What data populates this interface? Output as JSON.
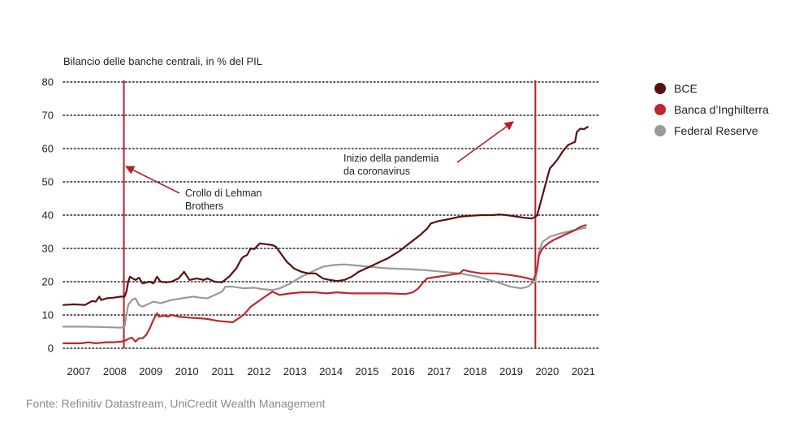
{
  "chart_data": {
    "type": "line",
    "title": "Bilancio delle banche centrali, in % del PIL",
    "xlabel": "",
    "ylabel": "Bilancio delle banche centrali, in % del PIL",
    "xlim": [
      2007.0,
      2021.85
    ],
    "ylim": [
      0,
      80
    ],
    "y_ticks": [
      0,
      10,
      20,
      30,
      40,
      50,
      60,
      70,
      80
    ],
    "x_ticks": [
      2007,
      2008,
      2009,
      2010,
      2011,
      2012,
      2013,
      2014,
      2015,
      2016,
      2017,
      2018,
      2019,
      2020,
      2021
    ],
    "grid": "horizontal dotted",
    "legend_position": "right",
    "series": [
      {
        "name": "BCE",
        "color": "#5a1010",
        "points": [
          [
            2007.0,
            13
          ],
          [
            2007.3,
            13.2
          ],
          [
            2007.6,
            13
          ],
          [
            2007.8,
            14.2
          ],
          [
            2007.9,
            14
          ],
          [
            2008.0,
            15.5
          ],
          [
            2008.05,
            14.5
          ],
          [
            2008.2,
            15
          ],
          [
            2008.4,
            15.2
          ],
          [
            2008.6,
            15.5
          ],
          [
            2008.7,
            15.5
          ],
          [
            2008.75,
            17
          ],
          [
            2008.8,
            20
          ],
          [
            2008.85,
            21.5
          ],
          [
            2009.0,
            20.5
          ],
          [
            2009.1,
            21.2
          ],
          [
            2009.2,
            19.5
          ],
          [
            2009.4,
            20
          ],
          [
            2009.5,
            19.5
          ],
          [
            2009.6,
            21.5
          ],
          [
            2009.7,
            20
          ],
          [
            2009.85,
            19.8
          ],
          [
            2010.0,
            20
          ],
          [
            2010.2,
            21
          ],
          [
            2010.35,
            23
          ],
          [
            2010.5,
            20.5
          ],
          [
            2010.7,
            21
          ],
          [
            2010.9,
            20.5
          ],
          [
            2011.0,
            21
          ],
          [
            2011.2,
            20
          ],
          [
            2011.4,
            19.8
          ],
          [
            2011.6,
            21.5
          ],
          [
            2011.8,
            24
          ],
          [
            2011.95,
            27
          ],
          [
            2012.0,
            27.5
          ],
          [
            2012.1,
            28
          ],
          [
            2012.2,
            30
          ],
          [
            2012.3,
            29.8
          ],
          [
            2012.45,
            31.5
          ],
          [
            2012.6,
            31.3
          ],
          [
            2012.8,
            31
          ],
          [
            2012.9,
            30.5
          ],
          [
            2013.0,
            29
          ],
          [
            2013.2,
            26
          ],
          [
            2013.4,
            24
          ],
          [
            2013.6,
            23
          ],
          [
            2013.8,
            22.5
          ],
          [
            2014.0,
            22.5
          ],
          [
            2014.2,
            21
          ],
          [
            2014.4,
            20.5
          ],
          [
            2014.6,
            20.2
          ],
          [
            2014.8,
            20.5
          ],
          [
            2015.0,
            21.5
          ],
          [
            2015.2,
            23
          ],
          [
            2015.5,
            24.5
          ],
          [
            2015.8,
            26
          ],
          [
            2016.0,
            27
          ],
          [
            2016.3,
            29
          ],
          [
            2016.6,
            31.5
          ],
          [
            2016.9,
            34
          ],
          [
            2017.1,
            36
          ],
          [
            2017.2,
            37.5
          ],
          [
            2017.4,
            38.2
          ],
          [
            2017.7,
            38.8
          ],
          [
            2018.0,
            39.5
          ],
          [
            2018.3,
            39.8
          ],
          [
            2018.6,
            40
          ],
          [
            2018.9,
            40
          ],
          [
            2019.1,
            40.2
          ],
          [
            2019.3,
            40
          ],
          [
            2019.6,
            39.5
          ],
          [
            2019.8,
            39.2
          ],
          [
            2020.0,
            39
          ],
          [
            2020.1,
            39.5
          ],
          [
            2020.15,
            40
          ],
          [
            2020.25,
            44
          ],
          [
            2020.35,
            48
          ],
          [
            2020.5,
            54
          ],
          [
            2020.7,
            56.5
          ],
          [
            2020.85,
            59
          ],
          [
            2021.0,
            61
          ],
          [
            2021.1,
            61.5
          ],
          [
            2021.2,
            62
          ],
          [
            2021.25,
            65
          ],
          [
            2021.35,
            66
          ],
          [
            2021.45,
            65.8
          ],
          [
            2021.55,
            66.5
          ]
        ]
      },
      {
        "name": "Banca d’Inghilterra",
        "color": "#c0272d",
        "points": [
          [
            2007.0,
            1.5
          ],
          [
            2007.5,
            1.5
          ],
          [
            2007.7,
            1.8
          ],
          [
            2007.9,
            1.5
          ],
          [
            2008.2,
            1.8
          ],
          [
            2008.4,
            1.8
          ],
          [
            2008.6,
            2
          ],
          [
            2008.7,
            2.2
          ],
          [
            2008.8,
            2.8
          ],
          [
            2008.9,
            3.2
          ],
          [
            2009.0,
            2
          ],
          [
            2009.1,
            3
          ],
          [
            2009.2,
            3
          ],
          [
            2009.3,
            4
          ],
          [
            2009.4,
            6
          ],
          [
            2009.5,
            8.5
          ],
          [
            2009.6,
            10.5
          ],
          [
            2009.65,
            9.5
          ],
          [
            2009.8,
            9.8
          ],
          [
            2009.9,
            9.5
          ],
          [
            2010.0,
            10
          ],
          [
            2010.2,
            9.5
          ],
          [
            2010.5,
            9.2
          ],
          [
            2010.8,
            9
          ],
          [
            2011.0,
            8.8
          ],
          [
            2011.3,
            8.2
          ],
          [
            2011.5,
            8
          ],
          [
            2011.7,
            7.8
          ],
          [
            2011.8,
            8.5
          ],
          [
            2012.0,
            10
          ],
          [
            2012.2,
            12.5
          ],
          [
            2012.4,
            14
          ],
          [
            2012.6,
            15.5
          ],
          [
            2012.8,
            17
          ],
          [
            2013.0,
            16
          ],
          [
            2013.3,
            16.5
          ],
          [
            2013.6,
            16.8
          ],
          [
            2014.0,
            16.8
          ],
          [
            2014.3,
            16.5
          ],
          [
            2014.6,
            16.8
          ],
          [
            2015.0,
            16.5
          ],
          [
            2015.5,
            16.5
          ],
          [
            2016.0,
            16.5
          ],
          [
            2016.5,
            16.3
          ],
          [
            2016.7,
            16.8
          ],
          [
            2016.85,
            18
          ],
          [
            2017.0,
            20
          ],
          [
            2017.1,
            21
          ],
          [
            2017.4,
            21.5
          ],
          [
            2017.7,
            22
          ],
          [
            2018.0,
            22.5
          ],
          [
            2018.1,
            23.5
          ],
          [
            2018.3,
            23
          ],
          [
            2018.6,
            22.5
          ],
          [
            2019.0,
            22.5
          ],
          [
            2019.4,
            22
          ],
          [
            2019.7,
            21.5
          ],
          [
            2019.9,
            21
          ],
          [
            2020.05,
            20.5
          ],
          [
            2020.1,
            22
          ],
          [
            2020.15,
            24
          ],
          [
            2020.2,
            28
          ],
          [
            2020.3,
            30
          ],
          [
            2020.45,
            31.5
          ],
          [
            2020.6,
            32.5
          ],
          [
            2020.8,
            33.5
          ],
          [
            2021.0,
            34.5
          ],
          [
            2021.2,
            35.5
          ],
          [
            2021.35,
            36.5
          ],
          [
            2021.5,
            37
          ]
        ]
      },
      {
        "name": "Federal Reserve",
        "color": "#9a9a9a",
        "points": [
          [
            2007.0,
            6.5
          ],
          [
            2007.5,
            6.5
          ],
          [
            2008.0,
            6.4
          ],
          [
            2008.3,
            6.3
          ],
          [
            2008.6,
            6.2
          ],
          [
            2008.7,
            6.5
          ],
          [
            2008.75,
            10
          ],
          [
            2008.8,
            13
          ],
          [
            2008.9,
            14.5
          ],
          [
            2009.0,
            15
          ],
          [
            2009.1,
            13
          ],
          [
            2009.2,
            12.5
          ],
          [
            2009.4,
            13.5
          ],
          [
            2009.5,
            14
          ],
          [
            2009.7,
            13.5
          ],
          [
            2010.0,
            14.5
          ],
          [
            2010.3,
            15
          ],
          [
            2010.6,
            15.5
          ],
          [
            2010.8,
            15.2
          ],
          [
            2011.0,
            15
          ],
          [
            2011.2,
            16
          ],
          [
            2011.4,
            17
          ],
          [
            2011.5,
            18.5
          ],
          [
            2011.7,
            18.5
          ],
          [
            2012.0,
            18
          ],
          [
            2012.3,
            18.2
          ],
          [
            2012.5,
            17.8
          ],
          [
            2012.8,
            17.5
          ],
          [
            2013.0,
            18
          ],
          [
            2013.3,
            19.5
          ],
          [
            2013.6,
            21.5
          ],
          [
            2013.9,
            23
          ],
          [
            2014.2,
            24.5
          ],
          [
            2014.5,
            25
          ],
          [
            2014.8,
            25.2
          ],
          [
            2015.0,
            25
          ],
          [
            2015.5,
            24.5
          ],
          [
            2016.0,
            24
          ],
          [
            2016.5,
            23.8
          ],
          [
            2017.0,
            23.5
          ],
          [
            2017.5,
            23
          ],
          [
            2018.0,
            22.5
          ],
          [
            2018.5,
            21.5
          ],
          [
            2019.0,
            20
          ],
          [
            2019.4,
            18.5
          ],
          [
            2019.7,
            18
          ],
          [
            2019.9,
            18.5
          ],
          [
            2020.0,
            19.5
          ],
          [
            2020.1,
            20
          ],
          [
            2020.15,
            24
          ],
          [
            2020.2,
            29
          ],
          [
            2020.3,
            32
          ],
          [
            2020.5,
            33.5
          ],
          [
            2020.8,
            34.5
          ],
          [
            2021.0,
            35
          ],
          [
            2021.3,
            35.8
          ],
          [
            2021.5,
            36.2
          ]
        ]
      }
    ],
    "event_lines": [
      {
        "x": 2008.68,
        "label": "Crollo di Lehman Brothers",
        "label_lines": [
          "Crollo di Lehman",
          "Brothers"
        ]
      },
      {
        "x": 2020.1,
        "label": "Inizio della pandemia da coronavirus",
        "label_lines": [
          "Inizio della pandemia",
          "da coronavirus"
        ]
      }
    ]
  },
  "source": "Fonte: Refinitiv Datastream, UniCredit Wealth Management",
  "colors": {
    "accent": "#b5202a",
    "grid": "#222222"
  }
}
